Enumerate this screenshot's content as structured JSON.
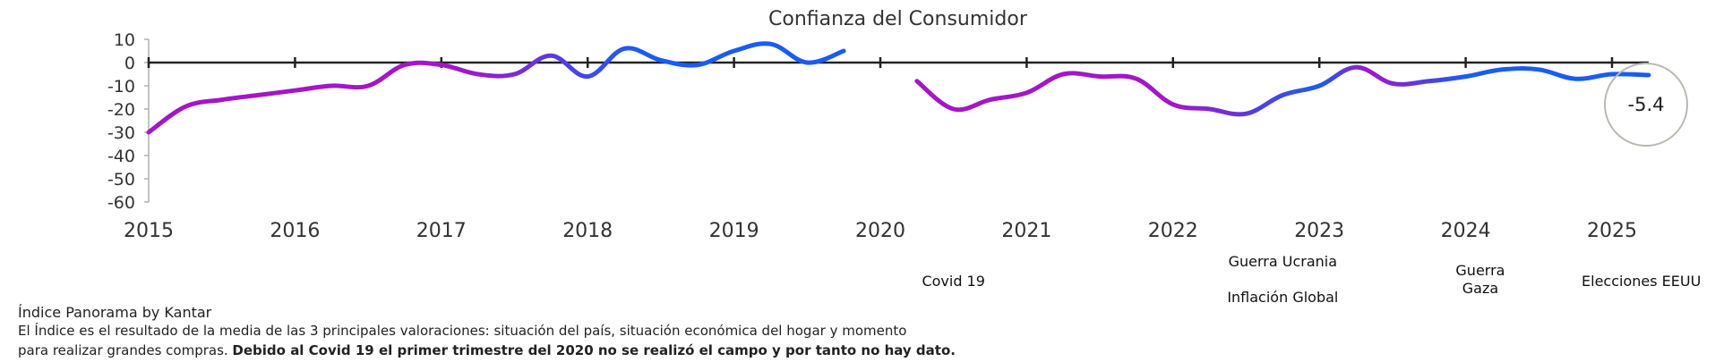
{
  "chart_data": {
    "type": "line",
    "title": "",
    "xlabel": "",
    "ylabel": "",
    "ylim": [
      -60,
      10
    ],
    "yticks": [
      "10",
      "0",
      "-10",
      "-20",
      "-30",
      "-40",
      "-50",
      "-60"
    ],
    "xticks": [
      "2015",
      "2016",
      "2017",
      "2018",
      "2019",
      "2020",
      "2021",
      "2022",
      "2023",
      "2024",
      "2025"
    ],
    "grid": false,
    "legend_position": "top-center",
    "gradient_colors": [
      "#a416c8",
      "#1a5cf2"
    ],
    "series": [
      {
        "name": "Confianza del Consumidor",
        "segments": [
          [
            [
              2015.0,
              -30
            ],
            [
              2015.25,
              -19
            ],
            [
              2015.5,
              -16
            ],
            [
              2015.75,
              -14
            ],
            [
              2016.0,
              -12
            ],
            [
              2016.25,
              -10
            ],
            [
              2016.5,
              -10
            ],
            [
              2016.75,
              -1
            ],
            [
              2017.0,
              -1
            ],
            [
              2017.25,
              -5
            ],
            [
              2017.5,
              -5
            ],
            [
              2017.75,
              3
            ],
            [
              2018.0,
              -6
            ],
            [
              2018.25,
              6
            ],
            [
              2018.5,
              1
            ],
            [
              2018.75,
              -1
            ],
            [
              2019.0,
              5
            ],
            [
              2019.25,
              8
            ],
            [
              2019.5,
              0
            ],
            [
              2019.75,
              5
            ]
          ],
          [
            [
              2020.25,
              -8
            ],
            [
              2020.5,
              -20
            ],
            [
              2020.75,
              -16
            ],
            [
              2021.0,
              -13
            ],
            [
              2021.25,
              -5
            ],
            [
              2021.5,
              -6
            ],
            [
              2021.75,
              -7
            ],
            [
              2022.0,
              -18
            ],
            [
              2022.25,
              -20
            ],
            [
              2022.5,
              -22
            ],
            [
              2022.75,
              -14
            ],
            [
              2023.0,
              -10
            ],
            [
              2023.25,
              -2
            ],
            [
              2023.5,
              -9
            ],
            [
              2023.75,
              -8
            ],
            [
              2024.0,
              -6
            ],
            [
              2024.25,
              -3
            ],
            [
              2024.5,
              -3
            ],
            [
              2024.75,
              -7
            ],
            [
              2025.0,
              -5
            ],
            [
              2025.25,
              -5.4
            ]
          ]
        ]
      }
    ],
    "last_value_label": "-5.4",
    "annotations": [
      {
        "lines": [
          "Covid 19"
        ],
        "x": 2020.5
      },
      {
        "lines": [
          "Guerra Ucrania",
          "",
          "Inflación Global"
        ],
        "x": 2022.75
      },
      {
        "lines": [
          "Guerra",
          "Gaza"
        ],
        "x": 2024.1
      },
      {
        "lines": [
          "Elecciones EEUU"
        ],
        "x": 2025.2
      }
    ]
  },
  "footer": {
    "title": "Índice Panorama by Kantar",
    "line1": "El Índice es el resultado de la media de las 3 principales valoraciones: situación del país, situación económica del hogar y momento",
    "line2_normal": "para realizar grandes compras. ",
    "line2_bold": "Debido al Covid 19 el primer trimestre del 2020 no se realizó el campo y por tanto no hay dato."
  }
}
